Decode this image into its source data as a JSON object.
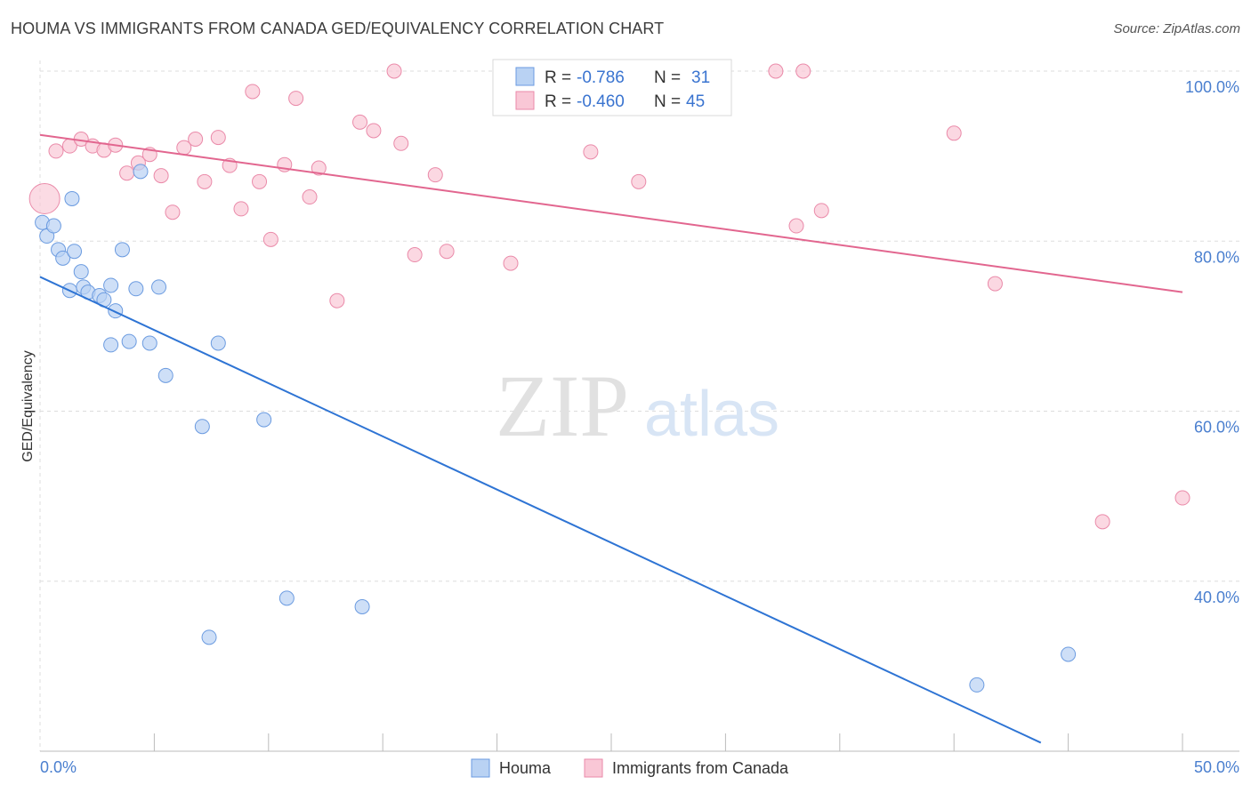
{
  "title": "HOUMA VS IMMIGRANTS FROM CANADA GED/EQUIVALENCY CORRELATION CHART",
  "source": "Source: ZipAtlas.com",
  "watermark": {
    "zip": "ZIP",
    "atlas": "atlas"
  },
  "colors": {
    "houma_fill": "#b9d2f3",
    "houma_stroke": "#6b9be0",
    "houma_line": "#2e74d4",
    "canada_fill": "#f9c7d6",
    "canada_stroke": "#ea8aa9",
    "canada_line": "#e2668f",
    "tick_label": "#4a7fcf",
    "grid": "#dddddd"
  },
  "legend": {
    "houma": {
      "r_label": "R =",
      "r_value": "-0.786",
      "n_label": "N =",
      "n_value": "31"
    },
    "canada": {
      "r_label": "R =",
      "r_value": "-0.460",
      "n_label": "N =",
      "n_value": "45"
    }
  },
  "bottom_legend": {
    "houma": "Houma",
    "canada": "Immigrants from Canada"
  },
  "chart_data": {
    "type": "scatter",
    "xlabel": "",
    "ylabel": "GED/Equivalency",
    "xlim": [
      0,
      50
    ],
    "ylim": [
      20,
      100
    ],
    "x_tick_labels": [
      "0.0%",
      "50.0%"
    ],
    "y_ticks": [
      40,
      60,
      80,
      100
    ],
    "y_tick_labels": [
      "40.0%",
      "60.0%",
      "80.0%",
      "100.0%"
    ],
    "grid": true,
    "legend_position": "top-center",
    "series": [
      {
        "name": "Houma",
        "points": [
          [
            0.1,
            82.2
          ],
          [
            0.3,
            80.6
          ],
          [
            0.6,
            81.8
          ],
          [
            0.8,
            79.0
          ],
          [
            1.0,
            78.0
          ],
          [
            1.3,
            74.2
          ],
          [
            1.5,
            78.8
          ],
          [
            1.8,
            76.4
          ],
          [
            1.9,
            74.6
          ],
          [
            2.1,
            74.0
          ],
          [
            2.6,
            73.6
          ],
          [
            2.8,
            73.1
          ],
          [
            3.1,
            74.8
          ],
          [
            3.3,
            71.8
          ],
          [
            1.4,
            85.0
          ],
          [
            3.6,
            79.0
          ],
          [
            3.1,
            67.8
          ],
          [
            3.9,
            68.2
          ],
          [
            4.2,
            74.4
          ],
          [
            4.8,
            68.0
          ],
          [
            5.2,
            74.6
          ],
          [
            4.4,
            88.2
          ],
          [
            5.5,
            64.2
          ],
          [
            7.8,
            68.0
          ],
          [
            7.1,
            58.2
          ],
          [
            9.8,
            59.0
          ],
          [
            10.8,
            38.0
          ],
          [
            14.1,
            37.0
          ],
          [
            7.4,
            33.4
          ],
          [
            41.0,
            27.8
          ],
          [
            45.0,
            31.4
          ]
        ],
        "trend": {
          "x": [
            0,
            43.8
          ],
          "y": [
            75.8,
            21.0
          ]
        }
      },
      {
        "name": "Immigrants from Canada",
        "points": [
          [
            0.2,
            85.0
          ],
          [
            0.7,
            90.6
          ],
          [
            1.3,
            91.2
          ],
          [
            1.8,
            92.0
          ],
          [
            2.3,
            91.2
          ],
          [
            2.8,
            90.7
          ],
          [
            3.3,
            91.3
          ],
          [
            3.8,
            88.0
          ],
          [
            4.3,
            89.2
          ],
          [
            4.8,
            90.2
          ],
          [
            5.3,
            87.7
          ],
          [
            5.8,
            83.4
          ],
          [
            6.3,
            91.0
          ],
          [
            6.8,
            92.0
          ],
          [
            7.2,
            87.0
          ],
          [
            7.8,
            92.2
          ],
          [
            8.3,
            88.9
          ],
          [
            8.8,
            83.8
          ],
          [
            9.3,
            97.6
          ],
          [
            9.6,
            87.0
          ],
          [
            10.1,
            80.2
          ],
          [
            10.7,
            89.0
          ],
          [
            11.2,
            96.8
          ],
          [
            11.8,
            85.2
          ],
          [
            12.2,
            88.6
          ],
          [
            13.0,
            73.0
          ],
          [
            14.0,
            94.0
          ],
          [
            14.6,
            93.0
          ],
          [
            15.5,
            100.0
          ],
          [
            15.8,
            91.5
          ],
          [
            16.4,
            78.4
          ],
          [
            17.3,
            87.8
          ],
          [
            17.8,
            78.8
          ],
          [
            20.6,
            77.4
          ],
          [
            24.1,
            90.5
          ],
          [
            26.2,
            87.0
          ],
          [
            29.0,
            100.0
          ],
          [
            32.2,
            100.0
          ],
          [
            33.4,
            100.0
          ],
          [
            33.1,
            81.8
          ],
          [
            34.2,
            83.6
          ],
          [
            40.0,
            92.7
          ],
          [
            41.8,
            75.0
          ],
          [
            46.5,
            47.0
          ],
          [
            50.0,
            49.8
          ]
        ],
        "trend": {
          "x": [
            0,
            50
          ],
          "y": [
            92.5,
            74.0
          ]
        }
      }
    ]
  }
}
